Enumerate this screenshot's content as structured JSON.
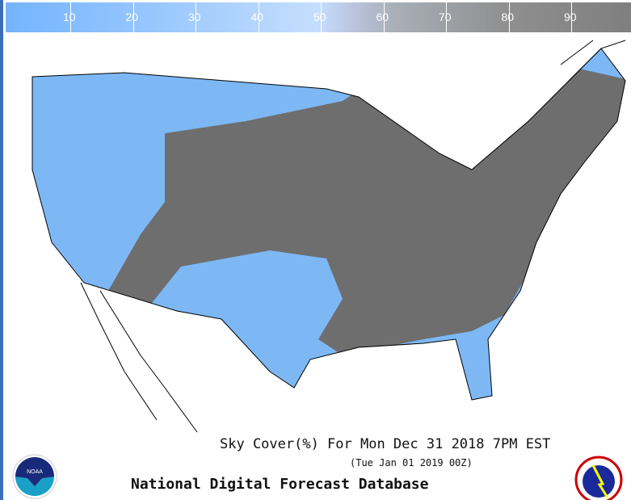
{
  "legend": {
    "ticks": [
      "10",
      "20",
      "30",
      "40",
      "50",
      "60",
      "70",
      "80",
      "90"
    ],
    "colors": {
      "low": "#74b4fd",
      "mid": "#c6defe",
      "high": "#7f7f7f"
    }
  },
  "map": {
    "clear_color": "#7db8f5",
    "cloudy_color": "#6e6e6e",
    "border_color": "#000000"
  },
  "title": "Sky Cover(%) For Mon Dec 31 2018  7PM EST",
  "subtitle": "(Tue Jan 01 2019 00Z)",
  "footer": "National Digital Forecast Database",
  "logos": {
    "left": "NOAA",
    "right": "NATIONAL WEATHER SERVICE"
  }
}
